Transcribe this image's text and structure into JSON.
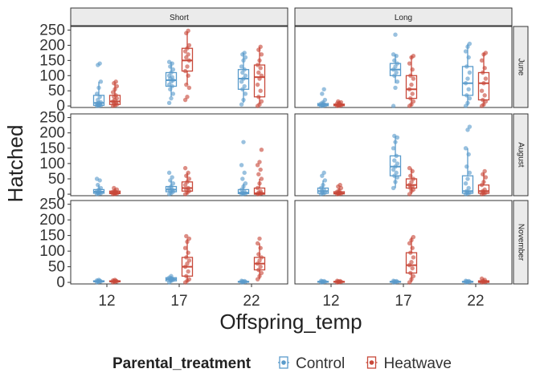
{
  "chart_data": {
    "type": "boxplot",
    "xlabel": "Offspring_temp",
    "ylabel": "Hatched",
    "categories": [
      "12",
      "17",
      "22"
    ],
    "y_ticks": [
      0,
      50,
      100,
      150,
      200,
      250
    ],
    "ylim": [
      -5,
      262
    ],
    "facet_cols": [
      "Short",
      "Long"
    ],
    "facet_rows": [
      "June",
      "August",
      "November"
    ],
    "legend": {
      "title": "Parental_treatment",
      "position": "bottom",
      "items": [
        {
          "name": "Control",
          "color": "#5A9BCB"
        },
        {
          "name": "Heatwave",
          "color": "#C8493A"
        }
      ]
    },
    "series_colors": {
      "Control": "#5A9BCB",
      "Heatwave": "#C8493A"
    },
    "panels": [
      {
        "row": "June",
        "col": "Short",
        "boxes": [
          {
            "category": "12",
            "series": "Control",
            "stats": [
              0,
              2,
              10,
              35,
              80
            ],
            "points": [
              0,
              1,
              2,
              3,
              5,
              8,
              10,
              12,
              20,
              30,
              40,
              60,
              80,
              135,
              140
            ]
          },
          {
            "category": "12",
            "series": "Heatwave",
            "stats": [
              0,
              5,
              15,
              35,
              75
            ],
            "points": [
              0,
              2,
              5,
              8,
              10,
              15,
              20,
              25,
              30,
              35,
              45,
              55,
              65,
              75,
              80
            ]
          },
          {
            "category": "17",
            "series": "Control",
            "stats": [
              30,
              65,
              85,
              110,
              145
            ],
            "points": [
              10,
              25,
              40,
              55,
              65,
              70,
              80,
              85,
              90,
              95,
              100,
              110,
              120,
              130,
              140,
              145
            ]
          },
          {
            "category": "17",
            "series": "Heatwave",
            "stats": [
              70,
              115,
              150,
              190,
              245
            ],
            "points": [
              20,
              30,
              60,
              70,
              100,
              115,
              130,
              150,
              160,
              170,
              180,
              190,
              200,
              240,
              248
            ]
          },
          {
            "category": "22",
            "series": "Control",
            "stats": [
              10,
              55,
              90,
              120,
              175
            ],
            "points": [
              5,
              20,
              40,
              55,
              65,
              80,
              90,
              100,
              110,
              120,
              130,
              150,
              160,
              170,
              175
            ]
          },
          {
            "category": "22",
            "series": "Heatwave",
            "stats": [
              5,
              30,
              95,
              135,
              195
            ],
            "points": [
              0,
              5,
              15,
              30,
              50,
              70,
              90,
              100,
              110,
              125,
              135,
              150,
              170,
              185,
              195
            ]
          }
        ]
      },
      {
        "row": "June",
        "col": "Long",
        "boxes": [
          {
            "category": "12",
            "series": "Control",
            "stats": [
              0,
              1,
              3,
              8,
              15
            ],
            "points": [
              0,
              1,
              2,
              3,
              5,
              8,
              12,
              20,
              40,
              55
            ]
          },
          {
            "category": "12",
            "series": "Heatwave",
            "stats": [
              0,
              1,
              3,
              6,
              15
            ],
            "points": [
              0,
              1,
              2,
              3,
              5,
              8,
              10,
              12,
              15
            ]
          },
          {
            "category": "17",
            "series": "Control",
            "stats": [
              75,
              100,
              120,
              140,
              170
            ],
            "points": [
              0,
              60,
              80,
              100,
              110,
              120,
              130,
              140,
              150,
              165,
              170,
              235
            ]
          },
          {
            "category": "17",
            "series": "Heatwave",
            "stats": [
              0,
              25,
              55,
              100,
              165
            ],
            "points": [
              0,
              5,
              15,
              25,
              40,
              55,
              70,
              90,
              100,
              120,
              140,
              160,
              165
            ]
          },
          {
            "category": "22",
            "series": "Control",
            "stats": [
              0,
              35,
              75,
              130,
              205
            ],
            "points": [
              0,
              10,
              25,
              35,
              55,
              75,
              90,
              110,
              130,
              160,
              180,
              195,
              205
            ]
          },
          {
            "category": "22",
            "series": "Heatwave",
            "stats": [
              0,
              20,
              75,
              110,
              175
            ],
            "points": [
              0,
              5,
              15,
              20,
              35,
              50,
              75,
              90,
              110,
              125,
              150,
              170,
              175
            ]
          }
        ]
      },
      {
        "row": "August",
        "col": "Short",
        "boxes": [
          {
            "category": "12",
            "series": "Control",
            "stats": [
              0,
              3,
              8,
              15,
              30
            ],
            "points": [
              0,
              2,
              3,
              5,
              8,
              10,
              15,
              20,
              30,
              45,
              50
            ]
          },
          {
            "category": "12",
            "series": "Heatwave",
            "stats": [
              0,
              2,
              5,
              10,
              20
            ],
            "points": [
              0,
              1,
              2,
              3,
              5,
              8,
              10,
              15,
              20
            ]
          },
          {
            "category": "17",
            "series": "Control",
            "stats": [
              0,
              8,
              15,
              25,
              45
            ],
            "points": [
              0,
              3,
              8,
              12,
              15,
              20,
              25,
              35,
              45,
              55,
              70
            ]
          },
          {
            "category": "17",
            "series": "Heatwave",
            "stats": [
              0,
              10,
              20,
              40,
              70
            ],
            "points": [
              0,
              5,
              10,
              15,
              20,
              30,
              40,
              50,
              60,
              70,
              85
            ]
          },
          {
            "category": "22",
            "series": "Control",
            "stats": [
              0,
              2,
              5,
              15,
              35
            ],
            "points": [
              0,
              1,
              2,
              5,
              8,
              15,
              25,
              35,
              50,
              70,
              95,
              170
            ]
          },
          {
            "category": "22",
            "series": "Heatwave",
            "stats": [
              0,
              0,
              3,
              20,
              50
            ],
            "points": [
              0,
              1,
              3,
              5,
              10,
              20,
              35,
              50,
              65,
              80,
              95,
              105,
              145
            ]
          }
        ]
      },
      {
        "row": "August",
        "col": "Long",
        "boxes": [
          {
            "category": "12",
            "series": "Control",
            "stats": [
              0,
              3,
              10,
              20,
              45
            ],
            "points": [
              0,
              2,
              5,
              10,
              15,
              20,
              30,
              45,
              60,
              70
            ]
          },
          {
            "category": "12",
            "series": "Heatwave",
            "stats": [
              0,
              1,
              3,
              8,
              20
            ],
            "points": [
              0,
              1,
              2,
              3,
              5,
              8,
              12,
              20,
              25,
              30
            ]
          },
          {
            "category": "17",
            "series": "Control",
            "stats": [
              20,
              60,
              90,
              125,
              190
            ],
            "points": [
              20,
              40,
              55,
              60,
              70,
              80,
              90,
              100,
              110,
              125,
              150,
              170,
              185,
              190
            ]
          },
          {
            "category": "17",
            "series": "Heatwave",
            "stats": [
              0,
              20,
              30,
              50,
              85
            ],
            "points": [
              0,
              10,
              15,
              20,
              25,
              30,
              40,
              50,
              60,
              75,
              85
            ]
          },
          {
            "category": "22",
            "series": "Control",
            "stats": [
              0,
              3,
              10,
              60,
              150
            ],
            "points": [
              0,
              2,
              5,
              10,
              20,
              35,
              50,
              70,
              90,
              130,
              150,
              210,
              220
            ]
          },
          {
            "category": "22",
            "series": "Heatwave",
            "stats": [
              0,
              3,
              10,
              30,
              70
            ],
            "points": [
              0,
              2,
              5,
              10,
              15,
              30,
              40,
              55,
              65,
              75
            ]
          }
        ]
      },
      {
        "row": "November",
        "col": "Short",
        "boxes": [
          {
            "category": "12",
            "series": "Control",
            "stats": [
              0,
              2,
              3,
              5,
              8
            ],
            "points": [
              0,
              2,
              3,
              4,
              5,
              6,
              8
            ]
          },
          {
            "category": "12",
            "series": "Heatwave",
            "stats": [
              0,
              2,
              3,
              5,
              8
            ],
            "points": [
              0,
              2,
              3,
              4,
              5,
              6,
              8
            ]
          },
          {
            "category": "17",
            "series": "Control",
            "stats": [
              0,
              5,
              10,
              15,
              20
            ],
            "points": [
              0,
              5,
              8,
              10,
              12,
              15,
              20
            ]
          },
          {
            "category": "17",
            "series": "Heatwave",
            "stats": [
              0,
              20,
              50,
              80,
              140
            ],
            "points": [
              0,
              5,
              10,
              20,
              35,
              50,
              60,
              70,
              80,
              95,
              110,
              130,
              140,
              148
            ]
          },
          {
            "category": "22",
            "series": "Control",
            "stats": [
              0,
              1,
              2,
              3,
              5
            ],
            "points": [
              0,
              1,
              2,
              3,
              4,
              5
            ]
          },
          {
            "category": "22",
            "series": "Heatwave",
            "stats": [
              10,
              40,
              60,
              80,
              125
            ],
            "points": [
              10,
              20,
              30,
              40,
              50,
              60,
              70,
              80,
              90,
              110,
              125,
              140
            ]
          }
        ]
      },
      {
        "row": "November",
        "col": "Long",
        "boxes": [
          {
            "category": "12",
            "series": "Control",
            "stats": [
              0,
              1,
              2,
              3,
              5
            ],
            "points": [
              0,
              1,
              2,
              3,
              4,
              5
            ]
          },
          {
            "category": "12",
            "series": "Heatwave",
            "stats": [
              0,
              1,
              2,
              3,
              5
            ],
            "points": [
              0,
              1,
              2,
              3,
              4,
              5
            ]
          },
          {
            "category": "17",
            "series": "Control",
            "stats": [
              0,
              1,
              2,
              3,
              5
            ],
            "points": [
              0,
              1,
              2,
              3,
              4,
              5
            ]
          },
          {
            "category": "17",
            "series": "Heatwave",
            "stats": [
              0,
              30,
              55,
              95,
              145
            ],
            "points": [
              0,
              10,
              20,
              30,
              45,
              55,
              65,
              80,
              95,
              110,
              125,
              135,
              145
            ]
          },
          {
            "category": "22",
            "series": "Control",
            "stats": [
              0,
              1,
              2,
              3,
              5
            ],
            "points": [
              0,
              1,
              2,
              3,
              4,
              5
            ]
          },
          {
            "category": "22",
            "series": "Heatwave",
            "stats": [
              0,
              0,
              2,
              5,
              12
            ],
            "points": [
              0,
              1,
              2,
              5,
              8,
              12
            ]
          }
        ]
      }
    ]
  }
}
